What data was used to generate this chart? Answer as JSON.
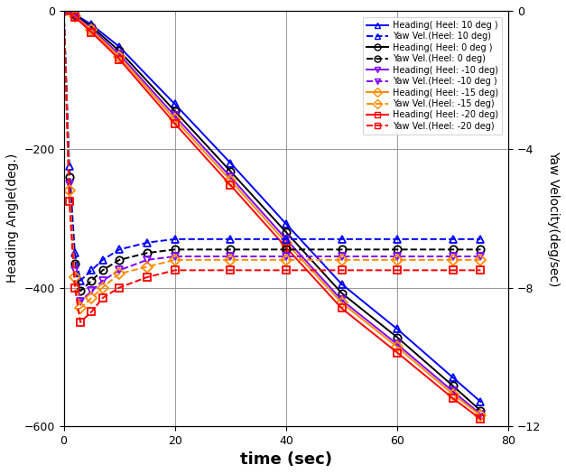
{
  "xlabel": "time (sec)",
  "ylabel_left": "Heading Angle(deg.)",
  "ylabel_right": "Yaw Velocity(deg/sec)",
  "xlim": [
    0,
    80
  ],
  "ylim_left": [
    -600,
    0
  ],
  "ylim_right": [
    -12,
    0
  ],
  "xticks": [
    0,
    20,
    40,
    60,
    80
  ],
  "yticks_left": [
    0,
    -200,
    -400,
    -600
  ],
  "yticks_right": [
    0,
    -4,
    -8,
    -12
  ],
  "cases": [
    {
      "heel": "10",
      "color": "#0000ff",
      "marker_heading": "^",
      "marker_yaw": "^"
    },
    {
      "heel": "0",
      "color": "#000000",
      "marker_heading": "o",
      "marker_yaw": "o"
    },
    {
      "heel": "-10",
      "color": "#8000ff",
      "marker_heading": "v",
      "marker_yaw": "v"
    },
    {
      "heel": "-15",
      "color": "#ff8c00",
      "marker_heading": "D",
      "marker_yaw": "D"
    },
    {
      "heel": "-20",
      "color": "#ff0000",
      "marker_heading": "s",
      "marker_yaw": "s"
    }
  ],
  "t_heading": [
    0,
    2,
    5,
    10,
    20,
    30,
    40,
    50,
    60,
    70,
    75
  ],
  "heading_data": {
    "10": [
      0,
      -5,
      -20,
      -52,
      -135,
      -220,
      -308,
      -395,
      -460,
      -530,
      -565
    ],
    "0": [
      0,
      -6,
      -23,
      -58,
      -145,
      -232,
      -320,
      -408,
      -472,
      -542,
      -578
    ],
    "-10": [
      0,
      -7,
      -26,
      -63,
      -152,
      -240,
      -330,
      -418,
      -482,
      -550,
      -583
    ],
    "-15": [
      0,
      -8,
      -28,
      -66,
      -157,
      -245,
      -335,
      -422,
      -486,
      -554,
      -585
    ],
    "-20": [
      0,
      -9,
      -31,
      -70,
      -163,
      -252,
      -342,
      -430,
      -494,
      -560,
      -590
    ]
  },
  "t_yaw": [
    0,
    1,
    2,
    3,
    5,
    7,
    10,
    15,
    20,
    30,
    40,
    50,
    60,
    70,
    75
  ],
  "yaw_data": {
    "10": [
      0,
      -4.5,
      -7.0,
      -7.8,
      -7.5,
      -7.2,
      -6.9,
      -6.7,
      -6.6,
      -6.6,
      -6.6,
      -6.6,
      -6.6,
      -6.6,
      -6.6
    ],
    "0": [
      0,
      -4.8,
      -7.3,
      -8.1,
      -7.8,
      -7.5,
      -7.2,
      -7.0,
      -6.9,
      -6.9,
      -6.9,
      -6.9,
      -6.9,
      -6.9,
      -6.9
    ],
    "-10": [
      0,
      -5.0,
      -7.5,
      -8.4,
      -8.1,
      -7.8,
      -7.5,
      -7.2,
      -7.1,
      -7.1,
      -7.1,
      -7.1,
      -7.1,
      -7.1,
      -7.1
    ],
    "-15": [
      0,
      -5.2,
      -7.7,
      -8.6,
      -8.3,
      -8.0,
      -7.6,
      -7.4,
      -7.2,
      -7.2,
      -7.2,
      -7.2,
      -7.2,
      -7.2,
      -7.2
    ],
    "-20": [
      0,
      -5.5,
      -8.0,
      -9.0,
      -8.7,
      -8.3,
      -8.0,
      -7.7,
      -7.5,
      -7.5,
      -7.5,
      -7.5,
      -7.5,
      -7.5,
      -7.5
    ]
  },
  "legend_entries": [
    "Heading( Heel: 10 deg )",
    "Yaw Vel.(Heel: 10 deg)",
    "Heading( Heel: 0 deg )",
    "Yaw Vel.(Heel: 0 deg)",
    "Heading( Heel: -10 deg)",
    "Yaw Vel.(Heel: -10 deg )",
    "Heading( Heel: -15 deg)",
    "Yaw Vel.(Heel: -15 deg)",
    "Heading( Heel: -20 deg)",
    "Yaw Vel.(Heel: -20 deg)"
  ]
}
